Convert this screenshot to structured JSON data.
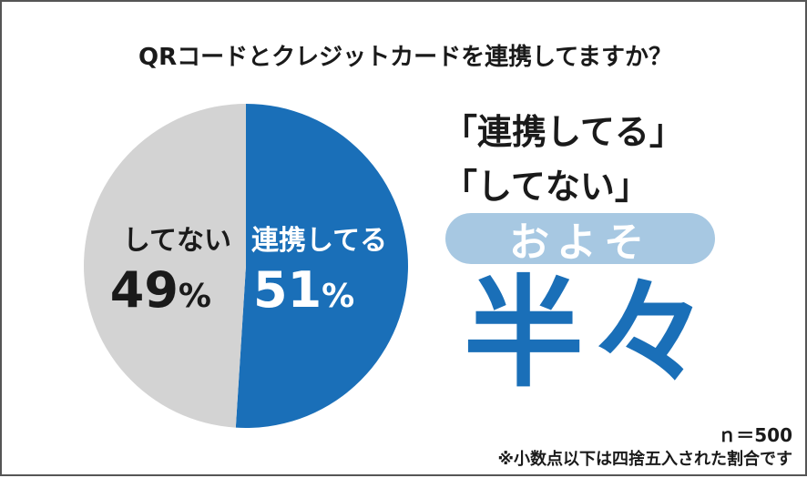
{
  "chart_data": {
    "type": "pie",
    "title": "QRコードとクレジットカードを連携してますか？",
    "slices": [
      {
        "label": "連携してる",
        "value": 51,
        "value_label": "51",
        "unit": "%",
        "color": "#1a6fb8",
        "text_color": "#ffffff"
      },
      {
        "label": "してない",
        "value": 49,
        "value_label": "49",
        "unit": "%",
        "color": "#d3d3d3",
        "text_color": "#1a1a1a"
      }
    ],
    "start": "12 o'clock",
    "direction": "clockwise"
  },
  "headline": {
    "line1": "「連携してる」",
    "line2": "「してない」",
    "pill": "およそ",
    "big": "半々"
  },
  "footnotes": {
    "sample": "ｎ＝500",
    "rounding": "※小数点以下は四捨五入された割合です"
  },
  "colors": {
    "accent": "#1a6fb8",
    "pill_bg": "#a7c8e2",
    "neutral": "#d3d3d3"
  }
}
